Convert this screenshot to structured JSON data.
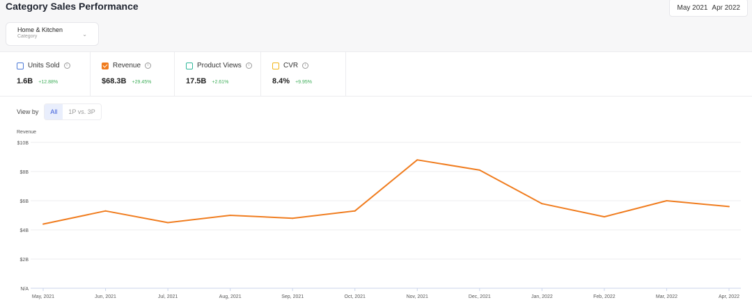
{
  "header": {
    "title": "Category Sales Performance",
    "date_from": "May 2021",
    "date_to": "Apr 2022"
  },
  "filter": {
    "value": "Home & Kitchen",
    "label": "Category"
  },
  "metrics": [
    {
      "name": "Units Sold",
      "value": "1.6B",
      "change": "+12.88%",
      "color": "#4a78d6",
      "checked": false
    },
    {
      "name": "Revenue",
      "value": "$68.3B",
      "change": "+29.45%",
      "color": "#f07c1e",
      "checked": true
    },
    {
      "name": "Product Views",
      "value": "17.5B",
      "change": "+2.61%",
      "color": "#2fb79a",
      "checked": false
    },
    {
      "name": "CVR",
      "value": "8.4%",
      "change": "+9.95%",
      "color": "#f2b417",
      "checked": false
    }
  ],
  "view_by": {
    "label": "View by",
    "options": [
      "All",
      "1P vs. 3P"
    ],
    "selected": "All"
  },
  "chart_data": {
    "type": "line",
    "ylabel": "Revenue",
    "ylim": [
      0,
      10
    ],
    "y_ticks": [
      "N/A",
      "$2B",
      "$4B",
      "$6B",
      "$8B",
      "$10B"
    ],
    "categories": [
      "May, 2021",
      "Jun, 2021",
      "Jul, 2021",
      "Aug, 2021",
      "Sep, 2021",
      "Oct, 2021",
      "Nov, 2021",
      "Dec, 2021",
      "Jan, 2022",
      "Feb, 2022",
      "Mar, 2022",
      "Apr, 2022"
    ],
    "series": [
      {
        "values": [
          4.4,
          5.3,
          4.5,
          5.0,
          4.8,
          5.3,
          8.8,
          8.1,
          5.8,
          4.9,
          6.0,
          5.6
        ],
        "color": "#f07c1e"
      }
    ],
    "grid": true
  }
}
